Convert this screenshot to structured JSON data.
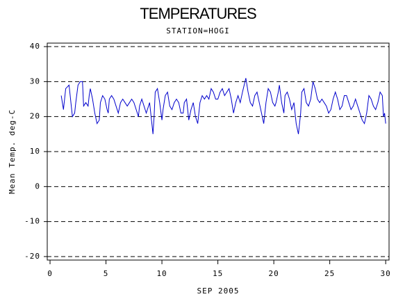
{
  "chart_data": {
    "type": "line",
    "title": "TEMPERATURES",
    "subtitle": "STATION=HOGI",
    "x_label": "SEP 2005",
    "y_label": "Mean Temp. deg-C",
    "xlim": [
      -0.25,
      30.3
    ],
    "ylim": [
      -21,
      41
    ],
    "xticks": [
      0,
      5,
      10,
      15,
      20,
      25,
      30
    ],
    "yticks": [
      -20,
      -10,
      0,
      10,
      20,
      30,
      40
    ],
    "grid": true,
    "x": [
      1.0,
      1.2,
      1.4,
      1.7,
      2.0,
      2.2,
      2.3,
      2.5,
      2.7,
      2.9,
      3.0,
      3.2,
      3.4,
      3.5,
      3.6,
      3.8,
      4.0,
      4.2,
      4.4,
      4.5,
      4.7,
      4.9,
      5.1,
      5.2,
      5.3,
      5.5,
      5.7,
      5.9,
      6.1,
      6.3,
      6.5,
      6.7,
      6.9,
      7.1,
      7.3,
      7.5,
      7.7,
      7.9,
      8.0,
      8.2,
      8.4,
      8.6,
      8.7,
      8.9,
      9.1,
      9.2,
      9.3,
      9.4,
      9.6,
      9.8,
      10.0,
      10.1,
      10.3,
      10.5,
      10.7,
      10.9,
      11.1,
      11.3,
      11.5,
      11.7,
      11.9,
      12.0,
      12.2,
      12.4,
      12.6,
      12.8,
      13.0,
      13.2,
      13.4,
      13.6,
      13.8,
      14.0,
      14.2,
      14.4,
      14.6,
      14.8,
      15.0,
      15.2,
      15.4,
      15.6,
      15.8,
      16.0,
      16.2,
      16.4,
      16.6,
      16.8,
      17.0,
      17.2,
      17.5,
      17.7,
      17.9,
      18.1,
      18.3,
      18.5,
      18.7,
      18.9,
      19.1,
      19.3,
      19.5,
      19.7,
      19.9,
      20.1,
      20.2,
      20.4,
      20.5,
      20.7,
      20.9,
      21.0,
      21.2,
      21.4,
      21.6,
      21.8,
      22.0,
      22.2,
      22.4,
      22.5,
      22.7,
      22.9,
      23.1,
      23.3,
      23.5,
      23.7,
      23.9,
      24.1,
      24.3,
      24.5,
      24.7,
      24.9,
      25.1,
      25.3,
      25.5,
      25.7,
      25.9,
      26.1,
      26.3,
      26.5,
      26.7,
      26.9,
      27.1,
      27.3,
      27.5,
      27.7,
      27.9,
      28.1,
      28.3,
      28.5,
      28.7,
      28.9,
      29.1,
      29.3,
      29.5,
      29.7,
      29.8,
      29.9,
      30.0
    ],
    "series": [
      {
        "name": "Mean Temp",
        "color": "#0000cc",
        "values": [
          26,
          22,
          28,
          29,
          20,
          21,
          24,
          29,
          30,
          30,
          23,
          24,
          23,
          26,
          28,
          25,
          21,
          18,
          19,
          24,
          26,
          25,
          22,
          21,
          25,
          26,
          25,
          23,
          21,
          24,
          25,
          24,
          23,
          24,
          25,
          24,
          22,
          20,
          23,
          25,
          23,
          21,
          22,
          24,
          18,
          15,
          20,
          27,
          28,
          24,
          19,
          22,
          26,
          27,
          23,
          22,
          24,
          25,
          24,
          21,
          21,
          24,
          25,
          19,
          22,
          24,
          20,
          18,
          24,
          26,
          25,
          26,
          25,
          28,
          27,
          25,
          25,
          27,
          28,
          26,
          27,
          28,
          25,
          21,
          24,
          26,
          24,
          27,
          31,
          27,
          24,
          23,
          26,
          27,
          24,
          21,
          18,
          24,
          28,
          27,
          24,
          23,
          24,
          27,
          29,
          24,
          21,
          26,
          27,
          25,
          22,
          24,
          18,
          15,
          21,
          27,
          28,
          24,
          23,
          25,
          30,
          28,
          25,
          24,
          25,
          24,
          23,
          21,
          22,
          25,
          27,
          25,
          22,
          23,
          26,
          26,
          24,
          22,
          23,
          25,
          23,
          21,
          19,
          18,
          21,
          26,
          25,
          23,
          22,
          24,
          27,
          26,
          20,
          21,
          18
        ]
      }
    ]
  }
}
